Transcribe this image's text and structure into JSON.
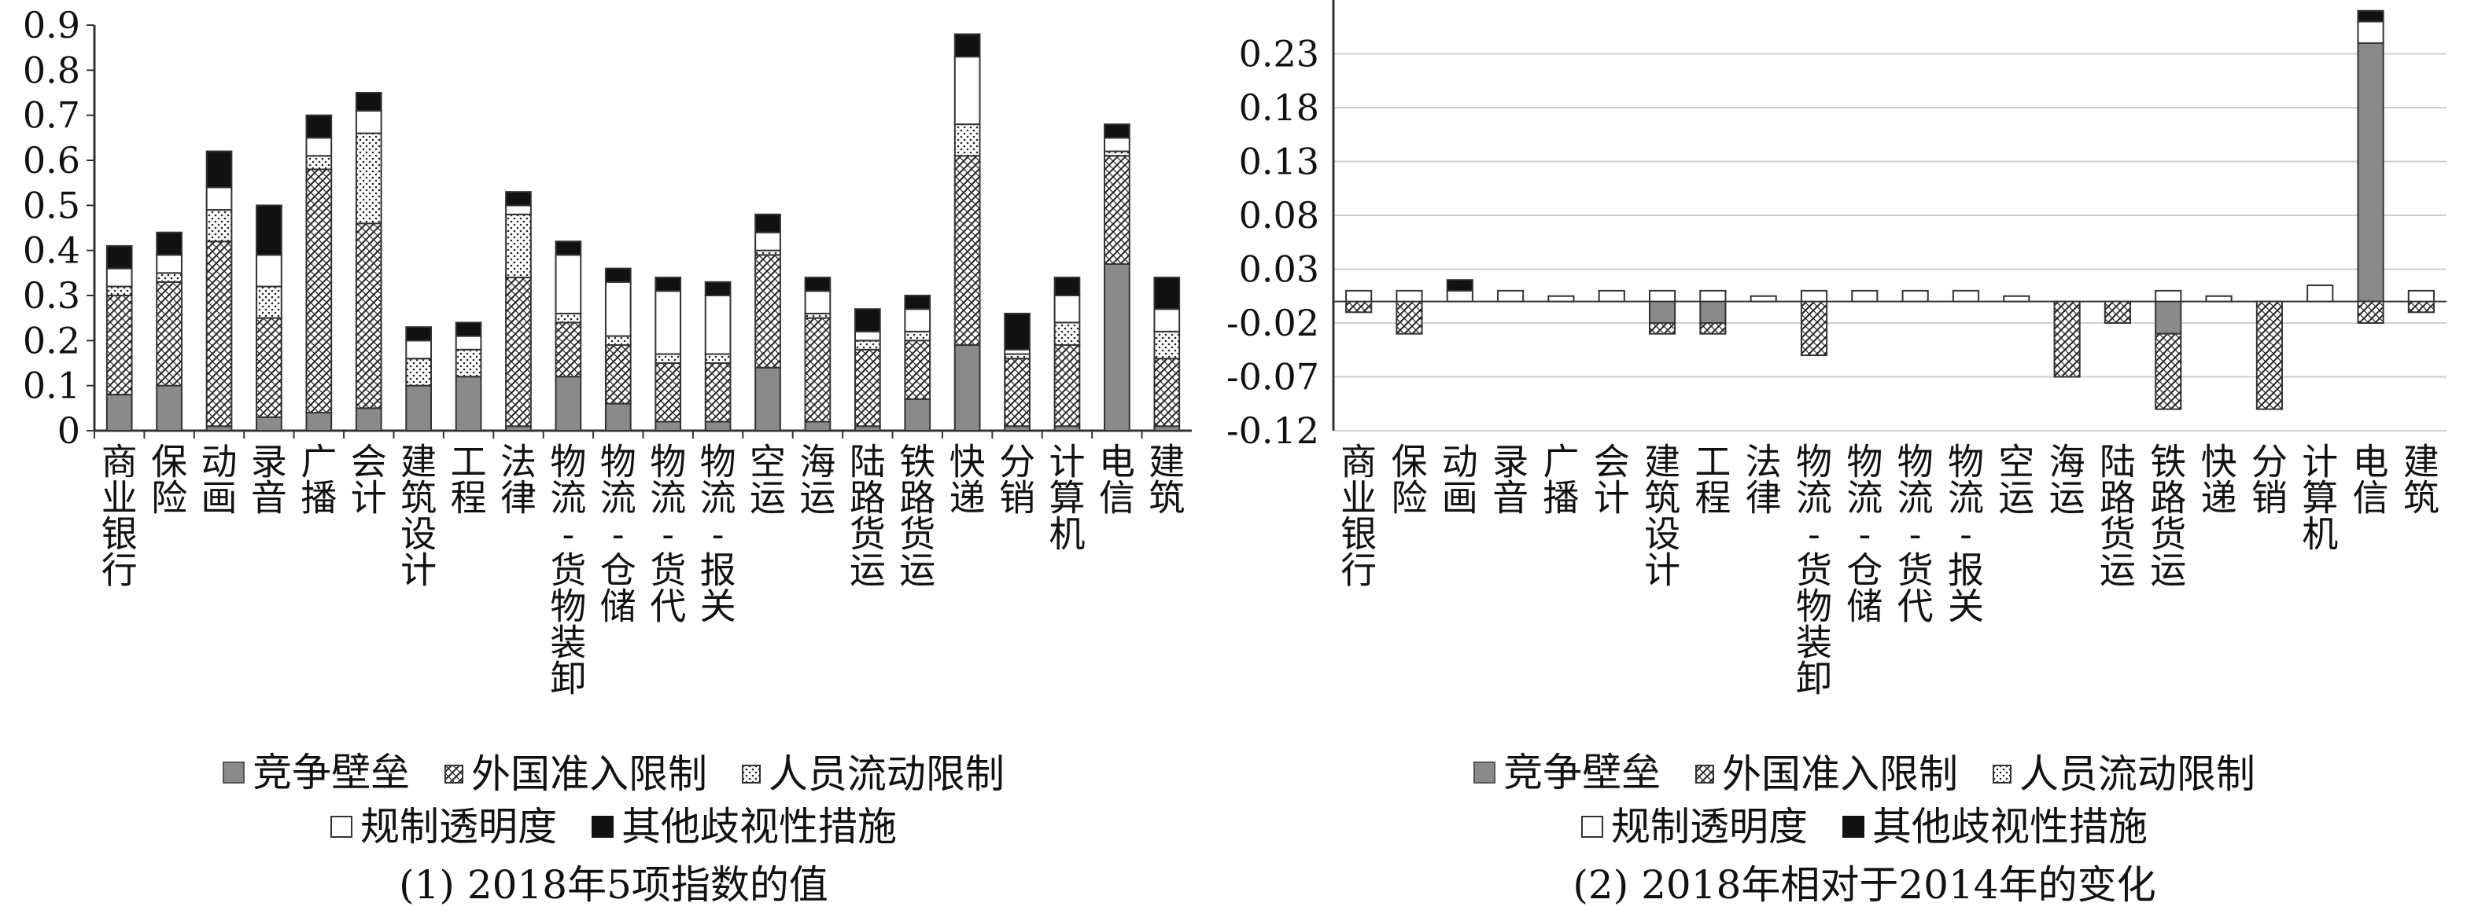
{
  "figure": {
    "colors": {
      "competition": "#8a8a8a",
      "foreign": "pattern-hatch",
      "people": "pattern-dots",
      "transparency": "#ffffff",
      "other": "#111111",
      "axis": "#333333"
    }
  },
  "chart_data": [
    {
      "type": "bar",
      "stacked": true,
      "title": "(1) 2018年5项指数的值",
      "categories": [
        "商业银行",
        "保险",
        "动画",
        "录音",
        "广播",
        "会计",
        "建筑设计",
        "工程",
        "法律",
        "物流-货物装卸",
        "物流-仓储",
        "物流-货代",
        "物流-报关",
        "空运",
        "海运",
        "陆路货运",
        "铁路货运",
        "快递",
        "分销",
        "计算机",
        "电信",
        "建筑"
      ],
      "ylim": [
        0,
        0.9
      ],
      "yticks": [
        "0",
        "0.1",
        "0.2",
        "0.3",
        "0.4",
        "0.5",
        "0.6",
        "0.7",
        "0.8",
        "0.9"
      ],
      "ytick_values": [
        0,
        0.1,
        0.2,
        0.3,
        0.4,
        0.5,
        0.6,
        0.7,
        0.8,
        0.9
      ],
      "grid": false,
      "legend_position": "bottom",
      "series": [
        {
          "name": "竞争壁垒",
          "key": "competition",
          "values": [
            0.08,
            0.1,
            0.01,
            0.03,
            0.04,
            0.05,
            0.1,
            0.12,
            0.01,
            0.12,
            0.06,
            0.02,
            0.02,
            0.14,
            0.02,
            0.01,
            0.07,
            0.19,
            0.01,
            0.01,
            0.37,
            0.01
          ]
        },
        {
          "name": "外国准入限制",
          "key": "foreign",
          "values": [
            0.22,
            0.23,
            0.41,
            0.22,
            0.54,
            0.41,
            0.0,
            0.0,
            0.33,
            0.12,
            0.13,
            0.13,
            0.13,
            0.25,
            0.23,
            0.17,
            0.13,
            0.42,
            0.15,
            0.18,
            0.24,
            0.15
          ]
        },
        {
          "name": "人员流动限制",
          "key": "people",
          "values": [
            0.02,
            0.02,
            0.07,
            0.07,
            0.03,
            0.2,
            0.06,
            0.06,
            0.14,
            0.02,
            0.02,
            0.02,
            0.02,
            0.01,
            0.01,
            0.02,
            0.02,
            0.07,
            0.01,
            0.05,
            0.01,
            0.06
          ]
        },
        {
          "name": "规制透明度",
          "key": "transparency",
          "values": [
            0.04,
            0.04,
            0.05,
            0.07,
            0.04,
            0.05,
            0.04,
            0.03,
            0.02,
            0.13,
            0.12,
            0.14,
            0.13,
            0.04,
            0.05,
            0.02,
            0.05,
            0.15,
            0.01,
            0.06,
            0.03,
            0.05
          ]
        },
        {
          "name": "其他歧视性措施",
          "key": "other",
          "values": [
            0.05,
            0.05,
            0.08,
            0.11,
            0.05,
            0.04,
            0.03,
            0.03,
            0.03,
            0.03,
            0.03,
            0.03,
            0.03,
            0.04,
            0.03,
            0.05,
            0.03,
            0.05,
            0.08,
            0.04,
            0.03,
            0.07
          ]
        }
      ]
    },
    {
      "type": "bar",
      "stacked": true,
      "title": "(2) 2018年相对于2014年的变化",
      "categories": [
        "商业银行",
        "保险",
        "动画",
        "录音",
        "广播",
        "会计",
        "建筑设计",
        "工程",
        "法律",
        "物流-货物装卸",
        "物流-仓储",
        "物流-货代",
        "物流-报关",
        "空运",
        "海运",
        "陆路货运",
        "铁路货运",
        "快递",
        "分销",
        "计算机",
        "电信",
        "建筑"
      ],
      "ylim": [
        -0.12,
        0.28
      ],
      "yticks": [
        "0.23",
        "0.18",
        "0.13",
        "0.08",
        "0.03",
        "-0.02",
        "-0.07",
        "-0.12"
      ],
      "ytick_values": [
        0.23,
        0.18,
        0.13,
        0.08,
        0.03,
        -0.02,
        -0.07,
        -0.12
      ],
      "zero_line": 0,
      "grid": true,
      "legend_position": "bottom",
      "series": [
        {
          "name": "竞争壁垒",
          "key": "competition",
          "values": [
            0,
            0,
            0,
            0,
            0,
            0,
            -0.02,
            -0.02,
            0,
            0,
            0,
            0,
            0,
            0,
            0,
            0,
            -0.03,
            0,
            0,
            0,
            0.24,
            0
          ]
        },
        {
          "name": "外国准入限制",
          "key": "foreign",
          "values": [
            -0.01,
            -0.03,
            0,
            0,
            0,
            0,
            -0.01,
            -0.01,
            0,
            -0.05,
            0,
            0,
            0,
            0,
            -0.07,
            -0.02,
            -0.07,
            0,
            -0.1,
            0,
            -0.02,
            -0.01
          ]
        },
        {
          "name": "人员流动限制",
          "key": "people",
          "values": [
            0,
            0,
            0,
            0,
            0,
            0,
            0,
            0,
            0,
            0,
            0,
            0,
            0,
            0,
            0,
            0,
            0,
            0,
            0,
            0,
            0,
            0
          ]
        },
        {
          "name": "规制透明度",
          "key": "transparency",
          "values": [
            0.01,
            0.01,
            0.01,
            0.01,
            0.005,
            0.01,
            0.01,
            0.01,
            0.005,
            0.01,
            0.01,
            0.01,
            0.01,
            0.005,
            0,
            0,
            0.01,
            0.005,
            0,
            0.015,
            0.02,
            0.01
          ]
        },
        {
          "name": "其他歧视性措施",
          "key": "other",
          "values": [
            0,
            0,
            0.01,
            0,
            0,
            0,
            0,
            0,
            0,
            0,
            0,
            0,
            0,
            0,
            0,
            0,
            0,
            0,
            0,
            0,
            0.01,
            0
          ]
        }
      ]
    }
  ]
}
